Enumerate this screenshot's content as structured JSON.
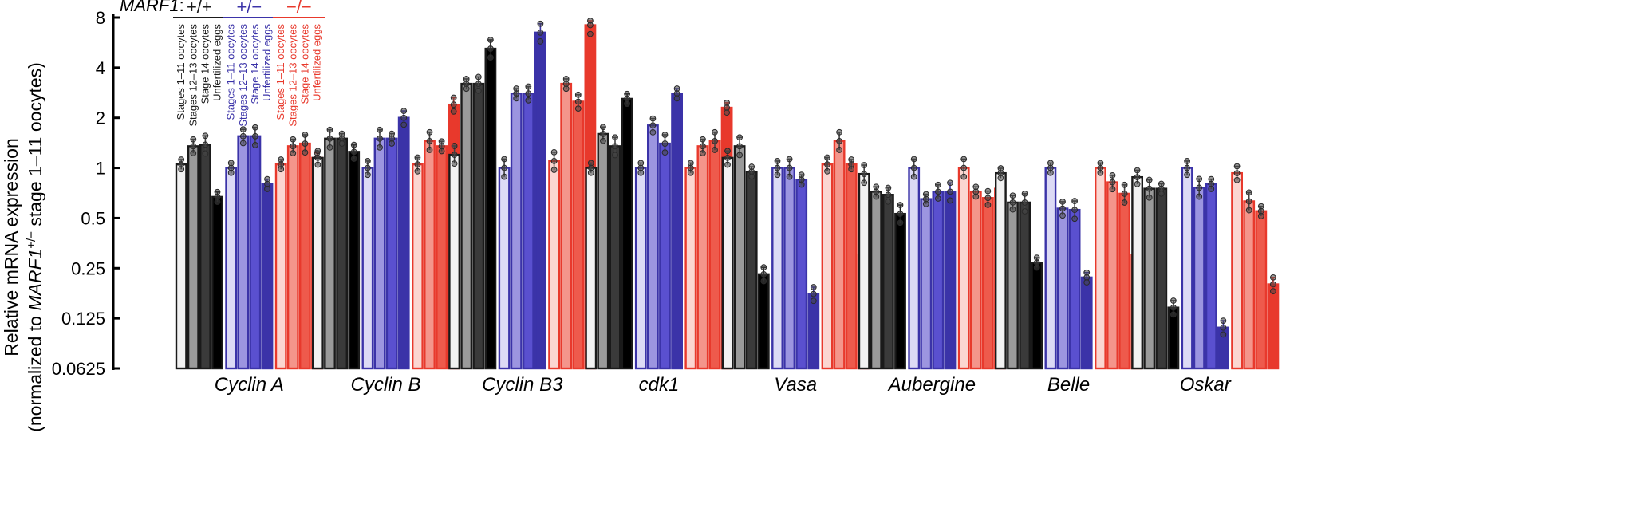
{
  "chart_data": {
    "type": "bar",
    "scale": "log2",
    "ylabel": {
      "line1": "Relative mRNA expression",
      "line2_prefix": "(normalized to ",
      "line2_gene": "MARF1",
      "line2_sup": "+/−",
      "line2_suffix": " stage 1–11 oocytes)"
    },
    "ylim": [
      0.0625,
      8
    ],
    "yticks": [
      {
        "value": 8,
        "label": "8"
      },
      {
        "value": 4,
        "label": "4"
      },
      {
        "value": 2,
        "label": "2"
      },
      {
        "value": 1,
        "label": "1"
      },
      {
        "value": 0.5,
        "label": "0.5"
      },
      {
        "value": 0.25,
        "label": "0.25"
      },
      {
        "value": 0.125,
        "label": "0.125"
      },
      {
        "value": 0.0625,
        "label": "0.0625"
      }
    ],
    "legend": {
      "title": "MARF1",
      "title_suffix": ":",
      "genotypes": [
        {
          "label": "+/+",
          "color": "#1a1a1a"
        },
        {
          "label": "+/−",
          "color": "#3b33a8"
        },
        {
          "label": "−/−",
          "color": "#e8392c"
        }
      ],
      "stages": [
        "Stages 1–11 oocytes",
        "Stages 12–13 oocytes",
        "Stage 14 oocytes",
        "Unfertilized eggs"
      ]
    },
    "palette": {
      "wt": {
        "fill": [
          "#f2f2f2",
          "#9a9a9a",
          "#3a3a3a",
          "#000000"
        ],
        "stroke": "#1a1a1a"
      },
      "het": {
        "fill": [
          "#dcdaf5",
          "#9c95e0",
          "#5a50cf",
          "#3b33a8"
        ],
        "stroke": "#3b33a8"
      },
      "mut": {
        "fill": [
          "#fbd6d1",
          "#f4958b",
          "#ee5a4c",
          "#e8392c"
        ],
        "stroke": "#e8392c"
      }
    },
    "genes": [
      {
        "name": "Cyclin A",
        "wt": [
          1.05,
          1.35,
          1.38,
          0.67
        ],
        "het": [
          1.0,
          1.55,
          1.55,
          0.8
        ],
        "mut": [
          1.05,
          1.35,
          1.4,
          1.15
        ]
      },
      {
        "name": "Cyclin B",
        "wt": [
          1.15,
          1.5,
          1.5,
          1.25
        ],
        "het": [
          1.0,
          1.5,
          1.5,
          2.0
        ],
        "mut": [
          1.05,
          1.45,
          1.35,
          2.4
        ]
      },
      {
        "name": "Cyclin B3",
        "wt": [
          1.2,
          3.2,
          3.2,
          5.2
        ],
        "het": [
          1.0,
          2.8,
          2.8,
          6.5
        ],
        "mut": [
          1.1,
          3.2,
          2.5,
          7.2
        ]
      },
      {
        "name": "cdk1",
        "wt": [
          1.0,
          1.6,
          1.35,
          2.6
        ],
        "het": [
          1.0,
          1.8,
          1.4,
          2.8
        ],
        "mut": [
          1.0,
          1.35,
          1.45,
          2.3
        ]
      },
      {
        "name": "Vasa",
        "wt": [
          1.15,
          1.35,
          0.95,
          0.23
        ],
        "het": [
          1.0,
          1.0,
          0.85,
          0.175
        ],
        "mut": [
          1.05,
          1.45,
          1.05,
          0.3
        ]
      },
      {
        "name": "Aubergine",
        "wt": [
          0.92,
          0.72,
          0.69,
          0.53
        ],
        "het": [
          1.0,
          0.65,
          0.72,
          0.72
        ],
        "mut": [
          1.0,
          0.72,
          0.66,
          0.75
        ]
      },
      {
        "name": "Belle",
        "wt": [
          0.93,
          0.62,
          0.62,
          0.27
        ],
        "het": [
          1.0,
          0.57,
          0.56,
          0.22
        ],
        "mut": [
          1.0,
          0.82,
          0.7,
          0.3
        ]
      },
      {
        "name": "Oskar",
        "wt": [
          0.88,
          0.75,
          0.75,
          0.145
        ],
        "het": [
          1.0,
          0.76,
          0.8,
          0.11
        ],
        "mut": [
          0.93,
          0.63,
          0.55,
          0.2
        ]
      }
    ]
  }
}
